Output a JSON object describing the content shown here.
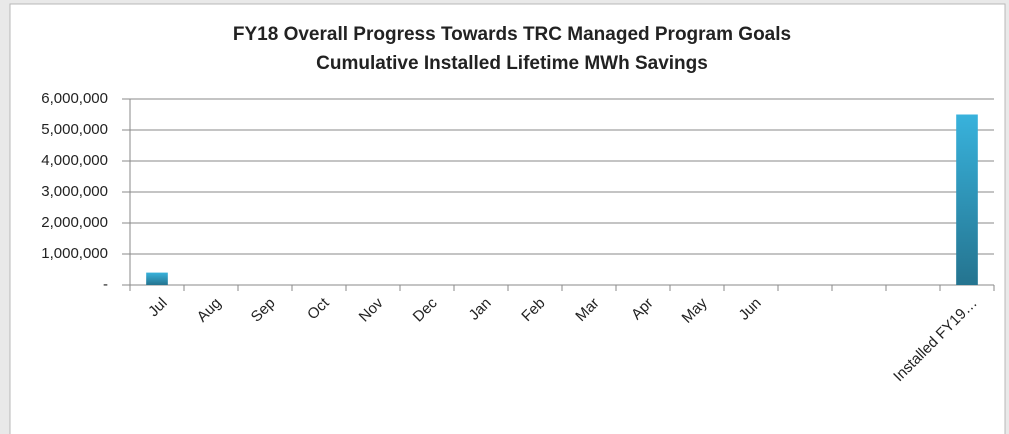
{
  "chart_data": {
    "type": "bar",
    "title": "FY18 Overall Progress Towards TRC  Managed Program Goals",
    "subtitle": "Cumulative Installed Lifetime MWh Savings",
    "categories": [
      "Jul",
      "Aug",
      "Sep",
      "Oct",
      "Nov",
      "Dec",
      "Jan",
      "Feb",
      "Mar",
      "Apr",
      "May",
      "Jun",
      null,
      null,
      null,
      "Installed FY19…"
    ],
    "values": [
      400000,
      null,
      null,
      null,
      null,
      null,
      null,
      null,
      null,
      null,
      null,
      null,
      null,
      null,
      null,
      5500000
    ],
    "color": "#38b2dc",
    "ylim": [
      0,
      6000000
    ],
    "yticks": [
      {
        "value": 0,
        "label": "-"
      },
      {
        "value": 1000000,
        "label": "1,000,000"
      },
      {
        "value": 2000000,
        "label": "2,000,000"
      },
      {
        "value": 3000000,
        "label": "3,000,000"
      },
      {
        "value": 4000000,
        "label": "4,000,000"
      },
      {
        "value": 5000000,
        "label": "5,000,000"
      },
      {
        "value": 6000000,
        "label": "6,000,000"
      }
    ],
    "grid": true
  }
}
